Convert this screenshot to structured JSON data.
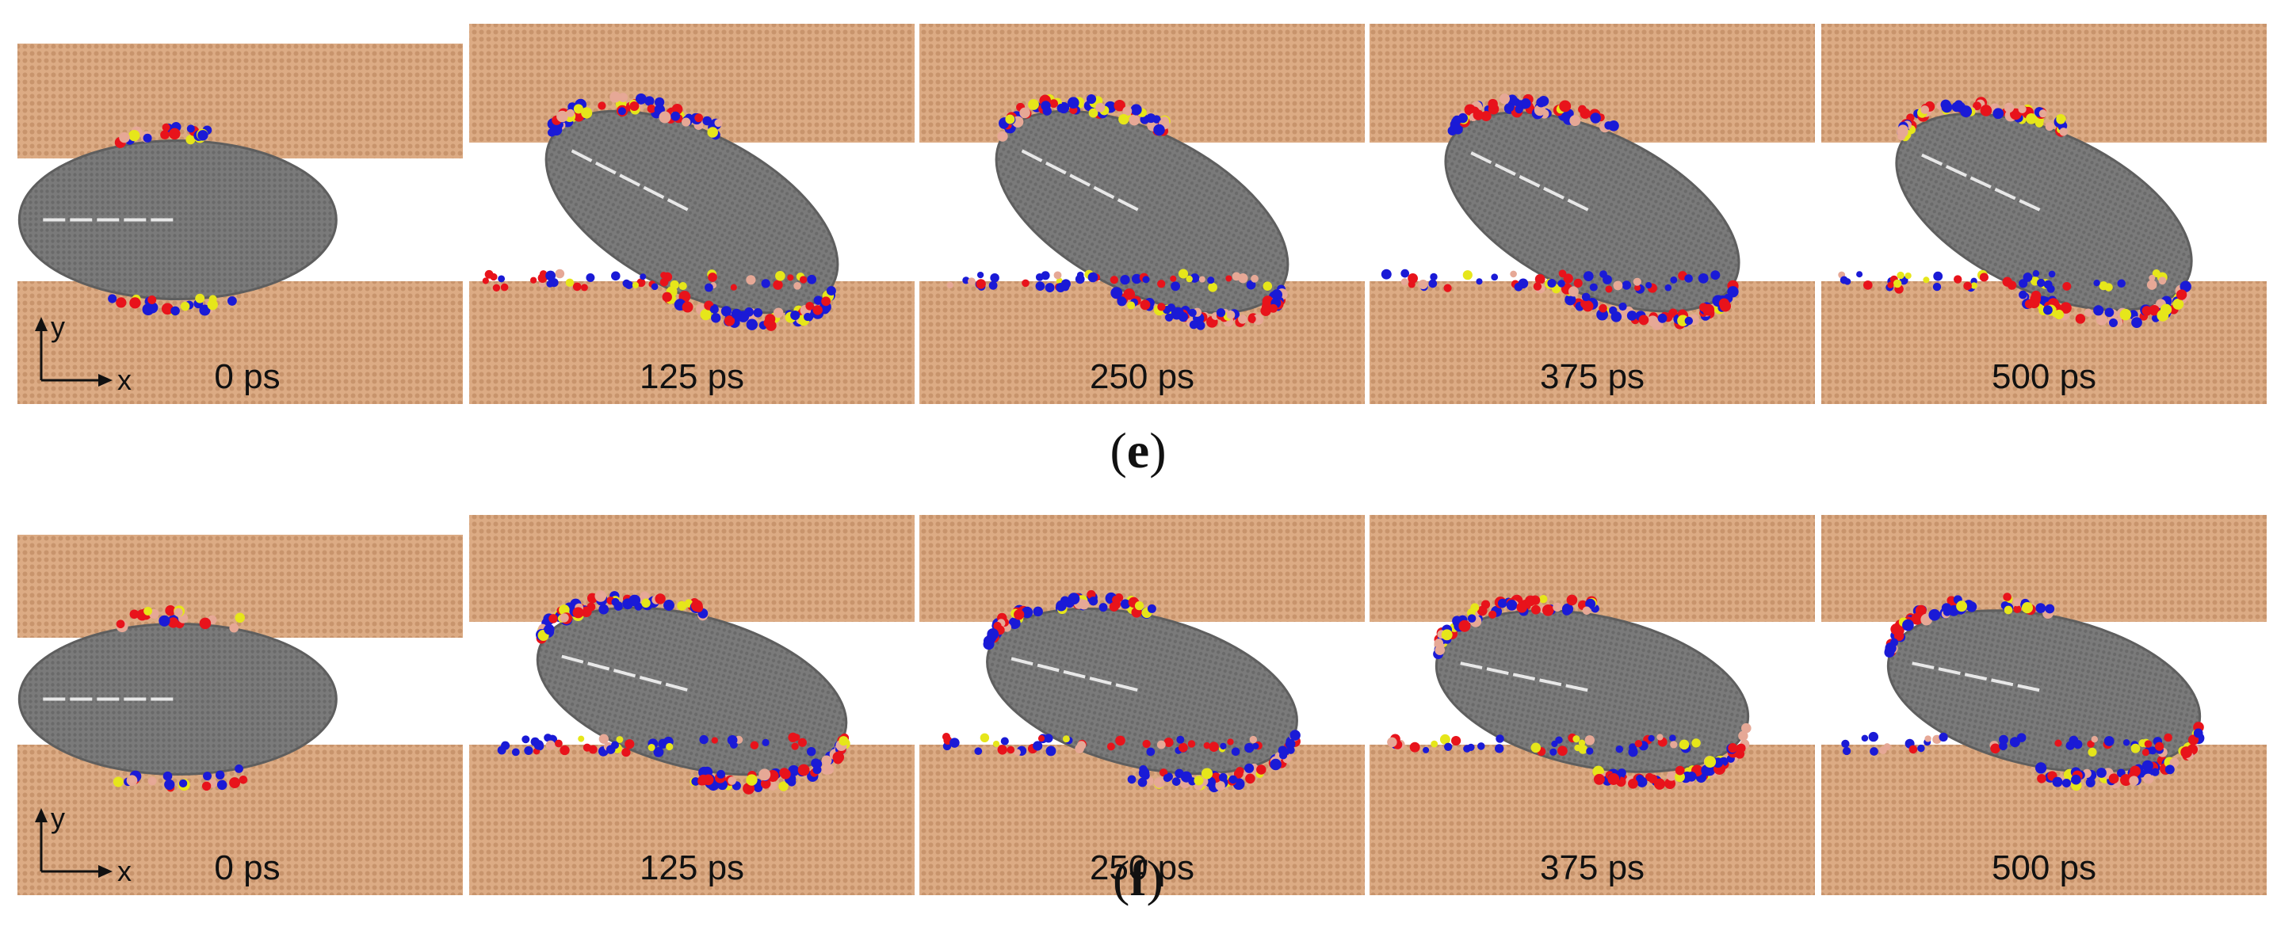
{
  "figure": {
    "rows": [
      {
        "label_prefix": "(",
        "label_letter": "e",
        "label_suffix": ")",
        "frames": [
          {
            "time": "0 ps",
            "tilt_deg": 0
          },
          {
            "time": "125 ps",
            "tilt_deg": 27
          },
          {
            "time": "250 ps",
            "tilt_deg": 27
          },
          {
            "time": "375 ps",
            "tilt_deg": 26
          },
          {
            "time": "500 ps",
            "tilt_deg": 25
          }
        ]
      },
      {
        "label_prefix": "(",
        "label_letter": "f",
        "label_suffix": ")",
        "frames": [
          {
            "time": "0 ps",
            "tilt_deg": 0
          },
          {
            "time": "125 ps",
            "tilt_deg": 15
          },
          {
            "time": "250 ps",
            "tilt_deg": 14
          },
          {
            "time": "375 ps",
            "tilt_deg": 12
          },
          {
            "time": "500 ps",
            "tilt_deg": 12
          }
        ]
      }
    ],
    "axes": {
      "x": "x",
      "y": "y"
    },
    "colors": {
      "slab": "#dcab84",
      "slab_dot": "#c8946c",
      "particle": "#7a7a7a",
      "particle_edge": "#5e5e5e",
      "marker_line": "#e8e8e8",
      "atom_red": "#e8131b",
      "atom_blue": "#1a1ad6",
      "atom_yellow": "#e6e61a",
      "atom_pink": "#e6a896"
    }
  }
}
